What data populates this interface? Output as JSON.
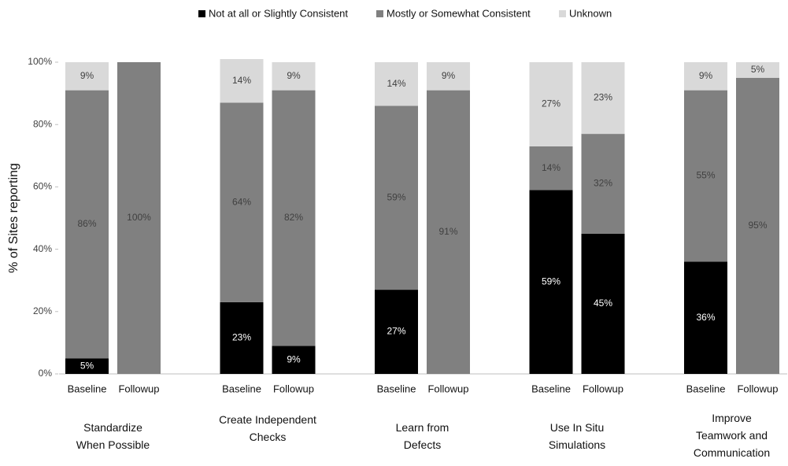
{
  "chart_data": {
    "type": "stacked_bar",
    "ylabel": "% of Sites reporting",
    "ylim": [
      0,
      100
    ],
    "yticks": [
      {
        "value": 0,
        "label": "0%"
      },
      {
        "value": 20,
        "label": "20%"
      },
      {
        "value": 40,
        "label": "40%"
      },
      {
        "value": 60,
        "label": "60%"
      },
      {
        "value": 80,
        "label": "80%"
      },
      {
        "value": 100,
        "label": "100%"
      }
    ],
    "groups": [
      "Standardize When Possible",
      "Create Independent Checks",
      "Learn from Defects",
      "Use In Situ Simulations",
      "Improve Teamwork and Communication"
    ],
    "categories": [
      "Baseline",
      "Followup",
      "Baseline",
      "Followup",
      "Baseline",
      "Followup",
      "Baseline",
      "Followup",
      "Baseline",
      "Followup"
    ],
    "series": [
      {
        "name": "Not at all or Slightly Consistent",
        "color": "#000000",
        "values": [
          5,
          0,
          23,
          9,
          27,
          0,
          59,
          45,
          36,
          0
        ],
        "value_labels": [
          "5%",
          null,
          "23%",
          "9%",
          "27%",
          null,
          "59%",
          "45%",
          "36%",
          null
        ]
      },
      {
        "name": "Mostly or Somewhat Consistent",
        "color": "#808080",
        "values": [
          86,
          100,
          64,
          82,
          59,
          91,
          14,
          32,
          55,
          95
        ],
        "value_labels": [
          "86%",
          "100%",
          "64%",
          "82%",
          "59%",
          "91%",
          "14%",
          "32%",
          "55%",
          "95%"
        ]
      },
      {
        "name": "Unknown",
        "color": "#d9d9d9",
        "values": [
          9,
          0,
          14,
          9,
          14,
          9,
          27,
          23,
          9,
          5
        ],
        "value_labels": [
          "9%",
          null,
          "14%",
          "9%",
          "14%",
          "9%",
          "27%",
          "23%",
          "9%",
          "5%"
        ]
      }
    ]
  }
}
